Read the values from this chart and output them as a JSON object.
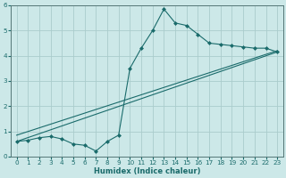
{
  "xlabel": "Humidex (Indice chaleur)",
  "bg_color": "#cce8e8",
  "grid_color": "#aacccc",
  "line_color": "#1a6b6b",
  "spine_color": "#557777",
  "xlim": [
    -0.5,
    23.5
  ],
  "ylim": [
    0,
    6
  ],
  "xticks": [
    0,
    1,
    2,
    3,
    4,
    5,
    6,
    7,
    8,
    9,
    10,
    11,
    12,
    13,
    14,
    15,
    16,
    17,
    18,
    19,
    20,
    21,
    22,
    23
  ],
  "yticks": [
    0,
    1,
    2,
    3,
    4,
    5,
    6
  ],
  "series1_x": [
    0,
    1,
    2,
    3,
    4,
    5,
    6,
    7,
    8,
    9,
    10,
    11,
    12,
    13,
    14,
    15,
    16,
    17,
    18,
    19,
    20,
    21,
    22,
    23
  ],
  "series1_y": [
    0.6,
    0.65,
    0.75,
    0.8,
    0.7,
    0.5,
    0.45,
    0.22,
    0.6,
    0.85,
    3.5,
    4.3,
    5.0,
    5.85,
    5.3,
    5.2,
    4.85,
    4.5,
    4.45,
    4.4,
    4.35,
    4.3,
    4.3,
    4.15
  ],
  "series2_x": [
    0,
    23
  ],
  "series2_y": [
    0.6,
    4.15
  ],
  "series3_x": [
    0,
    23
  ],
  "series3_y": [
    0.85,
    4.2
  ],
  "xlabel_fontsize": 6.0,
  "tick_fontsize": 5.2
}
